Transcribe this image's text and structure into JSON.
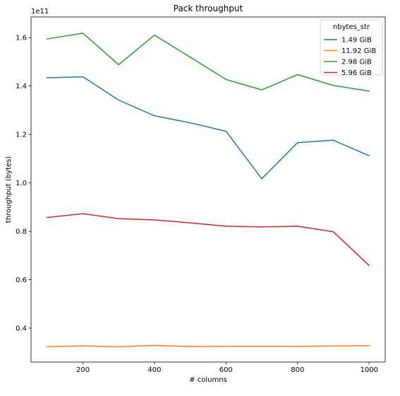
{
  "chart_data": {
    "type": "line",
    "title": "Pack throughput",
    "xlabel": "# columns",
    "ylabel": "throughput (bytes)",
    "y_offset_label": "1e11",
    "xlim": [
      55,
      1045
    ],
    "ylim": [
      0.26,
      1.685
    ],
    "y_scale": 100000000000.0,
    "x_ticks": [
      200,
      400,
      600,
      800,
      1000
    ],
    "x_tick_labels": [
      "200",
      "400",
      "600",
      "800",
      "1000"
    ],
    "y_ticks": [
      0.4,
      0.6,
      0.8,
      1.0,
      1.2,
      1.4,
      1.6
    ],
    "y_tick_labels": [
      "0.4",
      "0.6",
      "0.8",
      "1.0",
      "1.2",
      "1.4",
      "1.6"
    ],
    "grid": false,
    "legend": {
      "title": "nbytes_str",
      "placement": "top-right"
    },
    "x": [
      100,
      200,
      300,
      400,
      500,
      600,
      700,
      800,
      900,
      1000
    ],
    "series": [
      {
        "name": "1.49 GiB",
        "color": "#1f77b4",
        "values": [
          1.434,
          1.438,
          1.342,
          1.277,
          1.248,
          1.213,
          1.017,
          1.166,
          1.176,
          1.112
        ]
      },
      {
        "name": "11.92 GiB",
        "color": "#ff7f0e",
        "values": [
          0.323,
          0.327,
          0.323,
          0.329,
          0.324,
          0.325,
          0.325,
          0.325,
          0.326,
          0.328
        ]
      },
      {
        "name": "2.98 GiB",
        "color": "#2ca02c",
        "values": [
          1.594,
          1.618,
          1.488,
          1.61,
          1.519,
          1.427,
          1.384,
          1.447,
          1.402,
          1.379
        ]
      },
      {
        "name": "5.96 GiB",
        "color": "#d62728",
        "values": [
          0.857,
          0.873,
          0.852,
          0.847,
          0.835,
          0.821,
          0.818,
          0.821,
          0.798,
          0.659
        ]
      }
    ]
  }
}
